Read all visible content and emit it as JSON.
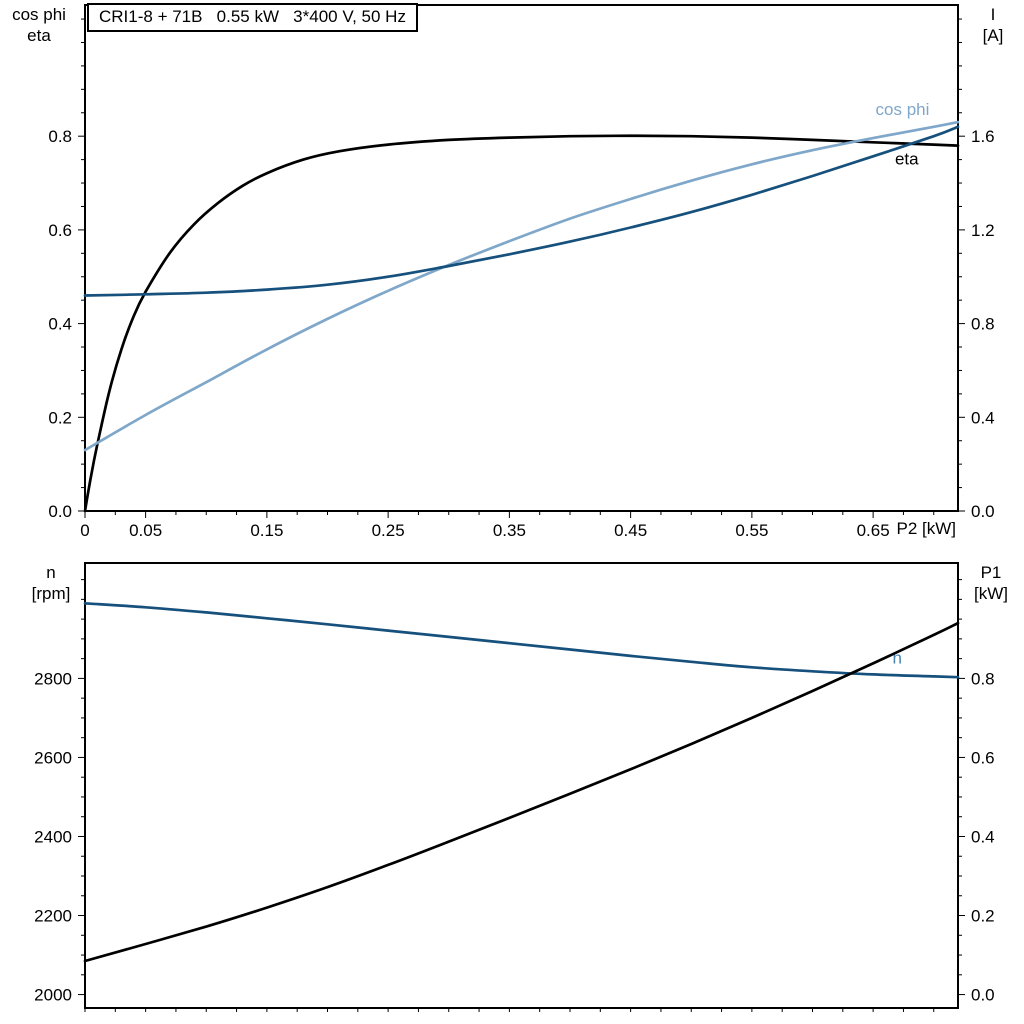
{
  "page": {
    "background": "#ffffff",
    "frame_color": "#000000"
  },
  "colors": {
    "black": "#000000",
    "dark_blue": "#16507c",
    "light_blue": "#7fa7c9",
    "n_label_blue": "#4484b2"
  },
  "chart_data": [
    {
      "type": "line",
      "title": "CRI1-8 + 71B   0.55 kW   3*400 V, 50 Hz",
      "xlabel": "P2 [kW]",
      "ylabel_left": [
        "cos phi",
        "eta"
      ],
      "ylabel_right": [
        "I",
        "[A]"
      ],
      "xlim": [
        0,
        0.72
      ],
      "ylim_left": [
        0,
        1.08
      ],
      "right_axis": {
        "offset": 0,
        "scale": 0.5
      },
      "grid": false,
      "legend": "inline-labels",
      "xticks": {
        "values": [
          0,
          0.05,
          0.15,
          0.25,
          0.35,
          0.45,
          0.55,
          0.65
        ],
        "labels": [
          "0",
          "0.05",
          "0.15",
          "0.25",
          "0.35",
          "0.45",
          "0.55",
          "0.65"
        ],
        "minor_step": 0.025,
        "show_labels": true
      },
      "yticks_left": {
        "values": [
          0,
          0.2,
          0.4,
          0.6,
          0.8
        ],
        "labels": [
          "0.0",
          "0.2",
          "0.4",
          "0.6",
          "0.8"
        ],
        "minor_step": 0.05
      },
      "yticks_right": {
        "values": [
          0,
          0.4,
          0.8,
          1.2,
          1.6
        ],
        "labels": [
          "0.0",
          "0.4",
          "0.8",
          "1.2",
          "1.6"
        ],
        "minor_step": 0.1
      },
      "series": [
        {
          "name": "eta",
          "axis": "left",
          "color": "#000000",
          "width": 2.7,
          "label": {
            "text": "eta",
            "color": "#000000",
            "x": 0.668,
            "y": 0.74
          },
          "points": [
            [
              0,
              0
            ],
            [
              0.005,
              0.075
            ],
            [
              0.01,
              0.14
            ],
            [
              0.02,
              0.255
            ],
            [
              0.03,
              0.345
            ],
            [
              0.04,
              0.415
            ],
            [
              0.05,
              0.468
            ],
            [
              0.07,
              0.551
            ],
            [
              0.09,
              0.612
            ],
            [
              0.11,
              0.658
            ],
            [
              0.13,
              0.694
            ],
            [
              0.15,
              0.721
            ],
            [
              0.18,
              0.75
            ],
            [
              0.21,
              0.768
            ],
            [
              0.25,
              0.782
            ],
            [
              0.3,
              0.792
            ],
            [
              0.35,
              0.797
            ],
            [
              0.4,
              0.8
            ],
            [
              0.45,
              0.801
            ],
            [
              0.5,
              0.8
            ],
            [
              0.55,
              0.797
            ],
            [
              0.6,
              0.792
            ],
            [
              0.65,
              0.787
            ],
            [
              0.7,
              0.782
            ],
            [
              0.72,
              0.78
            ]
          ]
        },
        {
          "name": "cos phi",
          "axis": "left",
          "color": "#7fa7c9",
          "width": 2.7,
          "label": {
            "text": "cos phi",
            "color": "#7fa7c9",
            "x": 0.652,
            "y": 0.845
          },
          "points": [
            [
              0,
              0.13
            ],
            [
              0.05,
              0.205
            ],
            [
              0.1,
              0.275
            ],
            [
              0.15,
              0.345
            ],
            [
              0.2,
              0.41
            ],
            [
              0.25,
              0.47
            ],
            [
              0.3,
              0.525
            ],
            [
              0.35,
              0.576
            ],
            [
              0.4,
              0.624
            ],
            [
              0.45,
              0.666
            ],
            [
              0.5,
              0.705
            ],
            [
              0.55,
              0.74
            ],
            [
              0.6,
              0.77
            ],
            [
              0.65,
              0.796
            ],
            [
              0.7,
              0.82
            ],
            [
              0.72,
              0.83
            ]
          ]
        },
        {
          "name": "I",
          "axis": "right",
          "color": "#16507c",
          "width": 2.7,
          "label": null,
          "points": [
            [
              0,
              0.92
            ],
            [
              0.05,
              0.925
            ],
            [
              0.1,
              0.932
            ],
            [
              0.15,
              0.945
            ],
            [
              0.2,
              0.966
            ],
            [
              0.25,
              1.0
            ],
            [
              0.3,
              1.046
            ],
            [
              0.35,
              1.096
            ],
            [
              0.4,
              1.15
            ],
            [
              0.45,
              1.21
            ],
            [
              0.5,
              1.276
            ],
            [
              0.55,
              1.35
            ],
            [
              0.6,
              1.43
            ],
            [
              0.65,
              1.514
            ],
            [
              0.7,
              1.6
            ],
            [
              0.72,
              1.64
            ]
          ]
        }
      ]
    },
    {
      "type": "line",
      "title": "",
      "xlabel": "",
      "ylabel_left": [
        "n",
        "[rpm]"
      ],
      "ylabel_right": [
        "P1",
        "[kW]"
      ],
      "xlim": [
        0,
        0.72
      ],
      "ylim_left": [
        1966,
        3092
      ],
      "right_axis": {
        "offset": 2000,
        "scale": 1000
      },
      "grid": false,
      "legend": "inline-labels",
      "xticks": {
        "values": [],
        "labels": [],
        "minor_step": 0.025,
        "show_labels": false
      },
      "yticks_left": {
        "values": [
          2000,
          2200,
          2400,
          2600,
          2800
        ],
        "labels": [
          "2000",
          "2200",
          "2400",
          "2600",
          "2800"
        ],
        "minor_step": 50
      },
      "yticks_right": {
        "values": [
          0,
          0.2,
          0.4,
          0.6,
          0.8
        ],
        "labels": [
          "0.0",
          "0.2",
          "0.4",
          "0.6",
          "0.8"
        ],
        "minor_step": 0.05
      },
      "series": [
        {
          "name": "n",
          "axis": "left",
          "color": "#16507c",
          "width": 2.7,
          "label": {
            "text": "n",
            "color": "#4484b2",
            "x": 0.666,
            "y": 2838
          },
          "points": [
            [
              0,
              2990
            ],
            [
              0.05,
              2980
            ],
            [
              0.1,
              2967
            ],
            [
              0.15,
              2952
            ],
            [
              0.2,
              2937
            ],
            [
              0.25,
              2921
            ],
            [
              0.3,
              2905
            ],
            [
              0.35,
              2889
            ],
            [
              0.4,
              2873
            ],
            [
              0.45,
              2857
            ],
            [
              0.5,
              2842
            ],
            [
              0.55,
              2828
            ],
            [
              0.6,
              2818
            ],
            [
              0.65,
              2810
            ],
            [
              0.7,
              2805
            ],
            [
              0.72,
              2803
            ]
          ]
        },
        {
          "name": "P1",
          "axis": "right",
          "color": "#000000",
          "width": 2.7,
          "label": {
            "text": "P1",
            "color": "#000000",
            "x": 0.658,
            "y": 2.97
          },
          "label_axis": "right",
          "points": [
            [
              0,
              0.085
            ],
            [
              0.05,
              0.128
            ],
            [
              0.1,
              0.172
            ],
            [
              0.15,
              0.22
            ],
            [
              0.2,
              0.272
            ],
            [
              0.25,
              0.328
            ],
            [
              0.3,
              0.387
            ],
            [
              0.35,
              0.447
            ],
            [
              0.4,
              0.508
            ],
            [
              0.45,
              0.57
            ],
            [
              0.5,
              0.634
            ],
            [
              0.55,
              0.7
            ],
            [
              0.6,
              0.768
            ],
            [
              0.65,
              0.838
            ],
            [
              0.7,
              0.91
            ],
            [
              0.72,
              0.94
            ]
          ]
        }
      ]
    }
  ]
}
